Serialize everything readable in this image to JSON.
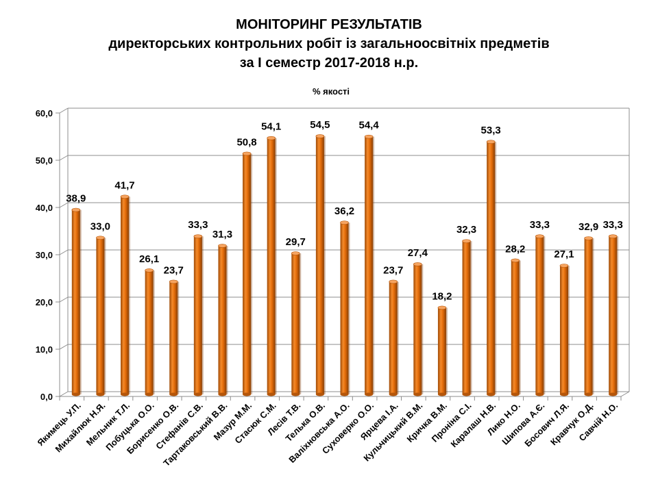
{
  "chart_data": {
    "type": "bar",
    "title": [
      "МОНІТОРИНГ РЕЗУЛЬТАТІВ",
      "директорських контрольних робіт із загальноосвітніх предметів",
      "за І семестр 2017-2018 н.р."
    ],
    "subtitle": "% якості",
    "xlabel": "",
    "ylabel": "",
    "ylim": [
      0,
      60
    ],
    "yticks": [
      "0,0",
      "10,0",
      "20,0",
      "30,0",
      "40,0",
      "50,0",
      "60,0"
    ],
    "grid": true,
    "categories": [
      "Якимець У.П.",
      "Михайлюк Н.Я.",
      "Мельник Т.Л.",
      "Побуцька О.О.",
      "Борисенко О.В.",
      "Стефанів С.В.",
      "Тартаковський В.В.",
      "Мазур М.М.",
      "Стасюк С.М.",
      "Лесів Т.В.",
      "Телька О.В.",
      "Валіхновська А.О.",
      "Суховерко О.О.",
      "Ярцева І.А.",
      "Кульчицький В.М.",
      "Кричка В.М.",
      "Проніна С.І.",
      "Каралаш Н.В.",
      "Лико Н.О.",
      "Шипова А.Є.",
      "Босович Л.Я.",
      "Кравчук О.Д.",
      "Савчій Н.О."
    ],
    "values": [
      38.9,
      33.0,
      41.7,
      26.1,
      23.7,
      33.3,
      31.3,
      50.8,
      54.1,
      29.7,
      54.5,
      36.2,
      54.4,
      23.7,
      27.4,
      18.2,
      32.3,
      53.3,
      28.2,
      33.3,
      27.1,
      32.9,
      33.3
    ],
    "value_labels": [
      "38,9",
      "33,0",
      "41,7",
      "26,1",
      "23,7",
      "33,3",
      "31,3",
      "50,8",
      "54,1",
      "29,7",
      "54,5",
      "36,2",
      "54,4",
      "23,7",
      "27,4",
      "18,2",
      "32,3",
      "53,3",
      "28,2",
      "33,3",
      "27,1",
      "32,9",
      "33,3"
    ],
    "bar_color": "#E36C0A",
    "grid_color": "#8C8C8C"
  }
}
